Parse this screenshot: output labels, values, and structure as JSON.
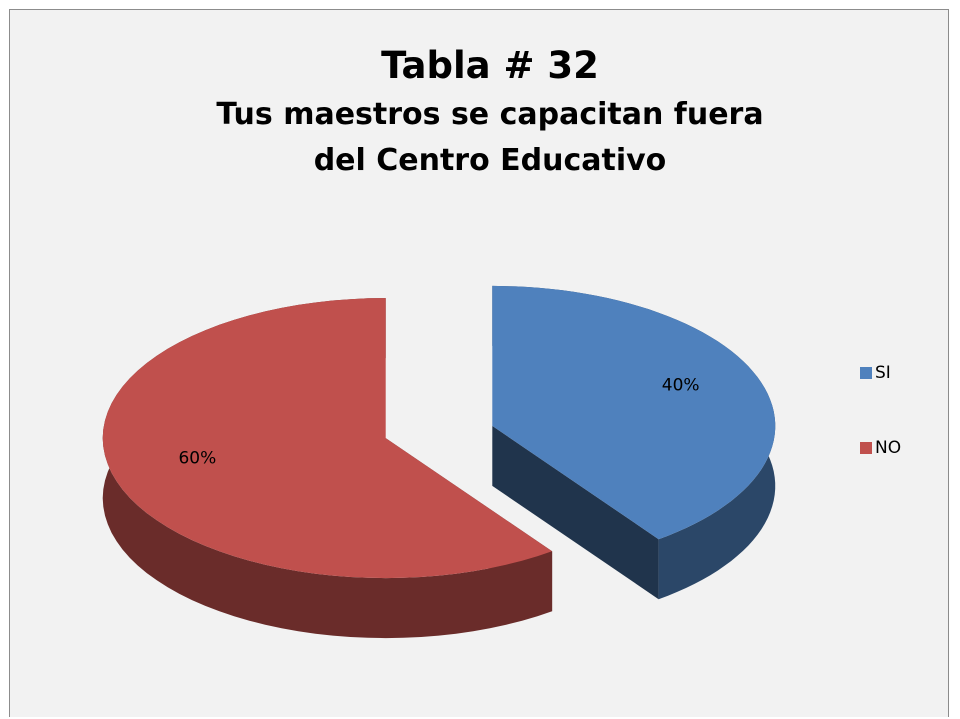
{
  "chart_data": {
    "type": "pie",
    "title": "Tabla # 32",
    "subtitle": "Tus maestros se capacitan fuera del Centro Educativo",
    "categories": [
      "SI",
      "NO"
    ],
    "values": [
      40,
      60
    ],
    "value_labels": [
      "40%",
      "60%"
    ],
    "colors": [
      "#4f81bd",
      "#c0504d"
    ],
    "legend": "right"
  }
}
